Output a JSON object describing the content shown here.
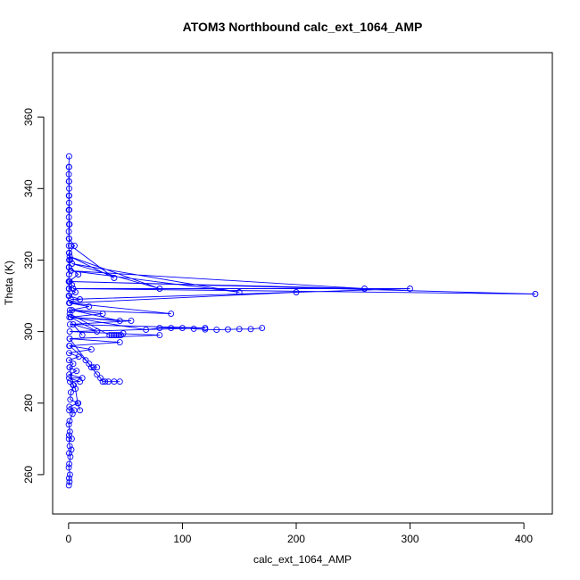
{
  "chart_data": {
    "type": "scatter",
    "title": "ATOM3 Northbound calc_ext_1064_AMP",
    "xlabel": "calc_ext_1064_AMP",
    "ylabel": "Theta (K)",
    "xlim": [
      -14,
      425
    ],
    "ylim": [
      249,
      378
    ],
    "xticks": [
      0,
      100,
      200,
      300,
      400
    ],
    "yticks": [
      260,
      280,
      300,
      320,
      340,
      360
    ],
    "series_color": "#0000ff",
    "marker": "open-circle",
    "connected": true,
    "series": [
      {
        "x": [
          0.3,
          0.8,
          0.4,
          1.2,
          0.2,
          0.6,
          1.6,
          0.5,
          2.5,
          1.0,
          0.3,
          2.8,
          0.4,
          1.1,
          0.2,
          0.9,
          3.5,
          0.6,
          5.0,
          0.7,
          8.5,
          1.5,
          2.0,
          4.5,
          1.3,
          10.0,
          0.5,
          12.0,
          0.6,
          7.0,
          0.8,
          4.0,
          0.4,
          9.0,
          0.5,
          20.0,
          0.6,
          45.0,
          0.9,
          80.0,
          1.0,
          120.0,
          1.2,
          55.0,
          0.7,
          30.0,
          1.1,
          18.0,
          0.5,
          10.0,
          0.6,
          6.0,
          0.4,
          3.0,
          0.5,
          8.5,
          0.4,
          1.5,
          0.6,
          5.2,
          0.3,
          0.8,
          0.2,
          0.5,
          0.3,
          0.4
        ],
        "y": [
          257,
          258,
          259,
          260,
          262,
          263,
          265,
          266,
          267,
          268,
          270,
          270,
          271,
          272,
          274,
          275,
          277,
          278,
          278,
          279,
          280,
          281,
          283,
          285,
          286,
          286,
          287,
          287,
          288,
          289,
          290,
          291,
          292,
          293,
          294,
          295,
          296,
          297,
          298,
          299,
          300,
          301,
          302,
          303,
          304,
          305,
          306,
          307,
          308,
          309,
          310,
          311,
          312,
          313,
          314,
          316,
          318,
          320,
          322,
          324,
          326,
          330,
          334,
          338,
          342,
          346
        ]
      },
      {
        "x": [
          2,
          40,
          1,
          80,
          3,
          150,
          2,
          260,
          1,
          410,
          4,
          300,
          2,
          200,
          1,
          90,
          3,
          45,
          2,
          25,
          4,
          12
        ],
        "y": [
          324,
          315,
          321,
          312,
          319,
          311,
          317,
          312,
          314,
          310.5,
          312,
          312,
          309,
          311,
          308,
          305,
          306,
          303,
          304,
          300,
          302,
          299
        ]
      },
      {
        "x": [
          1,
          36,
          38,
          40,
          42,
          44,
          46,
          48
        ],
        "y": [
          305,
          299,
          299,
          299,
          299,
          299,
          299,
          299.5
        ]
      },
      {
        "x": [
          2,
          68,
          80,
          90,
          100,
          110,
          120,
          130,
          140,
          150,
          160,
          170
        ],
        "y": [
          304,
          300.5,
          301,
          301,
          301,
          300.8,
          300.6,
          300.5,
          300.6,
          300.7,
          300.7,
          301
        ]
      },
      {
        "x": [
          1,
          25,
          28,
          30,
          32,
          35,
          40,
          45
        ],
        "y": [
          298,
          288,
          287,
          286,
          286,
          286,
          286,
          286
        ]
      },
      {
        "x": [
          1,
          15,
          18,
          20,
          22,
          25
        ],
        "y": [
          296,
          292,
          291,
          290,
          290,
          290
        ]
      },
      {
        "x": [
          1,
          4,
          6,
          8,
          10
        ],
        "y": [
          290,
          285,
          284,
          280,
          278
        ]
      },
      {
        "x": [
          0.2,
          0.3,
          0.2,
          0.4,
          0.3,
          0.5,
          0.4,
          0.3,
          0.5,
          0.2,
          0.4,
          0.3,
          0.6,
          0.4,
          0.3,
          0.5,
          0.4,
          0.2,
          0.3,
          0.4
        ],
        "y": [
          310,
          312,
          314,
          316,
          318,
          320,
          322,
          324,
          326,
          328,
          330,
          332,
          334,
          336,
          338,
          340,
          342,
          344,
          346,
          349
        ]
      }
    ]
  }
}
